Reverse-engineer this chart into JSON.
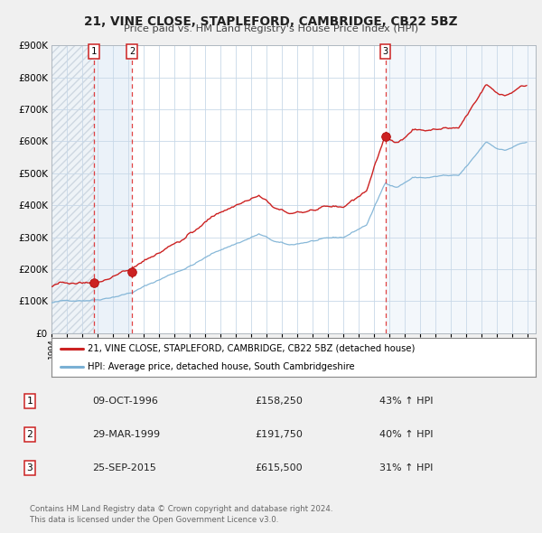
{
  "title1": "21, VINE CLOSE, STAPLEFORD, CAMBRIDGE, CB22 5BZ",
  "title2": "Price paid vs. HM Land Registry's House Price Index (HPI)",
  "bg_color": "#f0f0f0",
  "plot_bg_color": "#ffffff",
  "grid_color": "#c8d8e8",
  "sale_dates": [
    1996.77,
    1999.24,
    2015.73
  ],
  "sale_prices": [
    158250,
    191750,
    615500
  ],
  "sale_labels": [
    "1",
    "2",
    "3"
  ],
  "legend_entries": [
    {
      "label": "21, VINE CLOSE, STAPLEFORD, CAMBRIDGE, CB22 5BZ (detached house)",
      "color": "#cc2222"
    },
    {
      "label": "HPI: Average price, detached house, South Cambridgeshire",
      "color": "#7ab0d4"
    }
  ],
  "table_rows": [
    {
      "num": "1",
      "date": "09-OCT-1996",
      "price": "£158,250",
      "pct": "43% ↑ HPI"
    },
    {
      "num": "2",
      "date": "29-MAR-1999",
      "price": "£191,750",
      "pct": "40% ↑ HPI"
    },
    {
      "num": "3",
      "date": "25-SEP-2015",
      "price": "£615,500",
      "pct": "31% ↑ HPI"
    }
  ],
  "footer": "Contains HM Land Registry data © Crown copyright and database right 2024.\nThis data is licensed under the Open Government Licence v3.0.",
  "ylim": [
    0,
    900000
  ],
  "yticks": [
    0,
    100000,
    200000,
    300000,
    400000,
    500000,
    600000,
    700000,
    800000,
    900000
  ],
  "ytick_labels": [
    "£0",
    "£100K",
    "£200K",
    "£300K",
    "£400K",
    "£500K",
    "£600K",
    "£700K",
    "£800K",
    "£900K"
  ],
  "xlim_start": 1994.0,
  "xlim_end": 2025.5,
  "red_line_color": "#cc2222",
  "blue_line_color": "#7ab0d4",
  "vline_color": "#dd2222",
  "dot_color": "#cc2222"
}
